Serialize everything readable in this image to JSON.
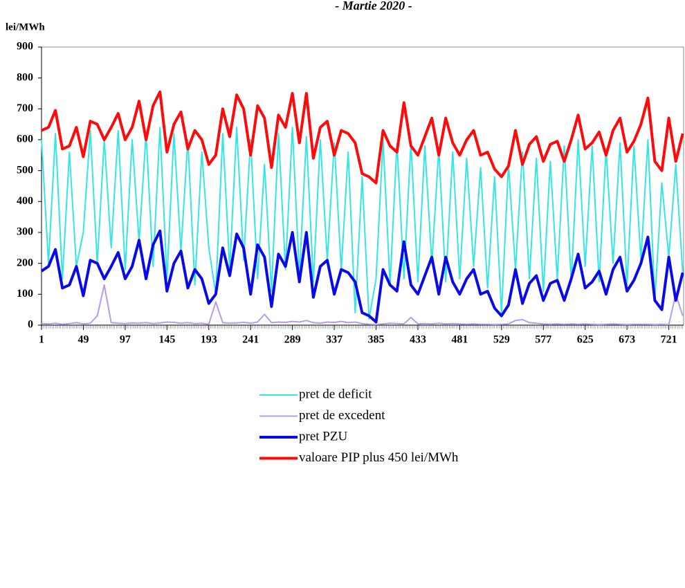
{
  "chart_data": {
    "type": "line",
    "title": "- Martie 2020 -",
    "y_label": "lei/MWh",
    "x": [
      1,
      9,
      17,
      25,
      33,
      41,
      49,
      57,
      65,
      73,
      81,
      89,
      97,
      105,
      113,
      121,
      129,
      137,
      145,
      153,
      161,
      169,
      177,
      185,
      193,
      201,
      209,
      217,
      225,
      233,
      241,
      249,
      257,
      265,
      273,
      281,
      289,
      297,
      305,
      313,
      321,
      329,
      337,
      345,
      353,
      361,
      369,
      377,
      385,
      393,
      401,
      409,
      417,
      425,
      433,
      441,
      449,
      457,
      465,
      473,
      481,
      489,
      497,
      505,
      513,
      521,
      529,
      537,
      545,
      553,
      561,
      569,
      577,
      585,
      593,
      601,
      609,
      617,
      625,
      633,
      641,
      649,
      657,
      665,
      673,
      681,
      689,
      697,
      705,
      713,
      721,
      729,
      737
    ],
    "xlim": [
      1,
      738
    ],
    "xticks": [
      1,
      49,
      97,
      145,
      193,
      241,
      289,
      337,
      385,
      433,
      481,
      529,
      577,
      625,
      673,
      721
    ],
    "ylim": [
      0,
      900
    ],
    "yticks": [
      0,
      100,
      200,
      300,
      400,
      500,
      600,
      700,
      800,
      900
    ],
    "series": [
      {
        "name": "pret de deficit",
        "color": "#33e6e6",
        "width": 2,
        "values": [
          600,
          200,
          620,
          150,
          560,
          190,
          300,
          630,
          200,
          600,
          250,
          630,
          180,
          600,
          270,
          620,
          190,
          640,
          150,
          620,
          240,
          600,
          130,
          560,
          250,
          100,
          620,
          180,
          640,
          210,
          600,
          150,
          520,
          110,
          620,
          180,
          640,
          160,
          610,
          140,
          600,
          210,
          590,
          180,
          560,
          40,
          480,
          20,
          150,
          600,
          130,
          590,
          150,
          590,
          140,
          580,
          200,
          570,
          140,
          560,
          150,
          540,
          190,
          510,
          120,
          480,
          40,
          520,
          180,
          560,
          150,
          540,
          110,
          530,
          150,
          580,
          140,
          600,
          190,
          580,
          140,
          570,
          200,
          590,
          130,
          580,
          210,
          600,
          80,
          460,
          220,
          520,
          170
        ]
      },
      {
        "name": "pret de excedent",
        "color": "#b89be8",
        "width": 2,
        "values": [
          5,
          4,
          6,
          3,
          5,
          8,
          4,
          6,
          30,
          130,
          8,
          6,
          5,
          7,
          6,
          8,
          5,
          7,
          10,
          9,
          6,
          8,
          5,
          6,
          3,
          75,
          8,
          6,
          7,
          9,
          6,
          10,
          35,
          8,
          10,
          9,
          12,
          10,
          15,
          8,
          6,
          10,
          9,
          12,
          8,
          10,
          5,
          3,
          2,
          4,
          6,
          5,
          4,
          25,
          4,
          5,
          4,
          6,
          4,
          5,
          4,
          3,
          4,
          3,
          3,
          2,
          3,
          4,
          15,
          18,
          8,
          6,
          4,
          3,
          4,
          3,
          4,
          3,
          4,
          3,
          2,
          3,
          4,
          3,
          2,
          3,
          3,
          3,
          2,
          3,
          2,
          100,
          30
        ]
      },
      {
        "name": "pret PZU",
        "color": "#0a0ae6",
        "width": 4,
        "values": [
          175,
          190,
          245,
          120,
          130,
          190,
          95,
          210,
          200,
          150,
          190,
          235,
          150,
          190,
          275,
          150,
          260,
          305,
          110,
          200,
          240,
          120,
          180,
          150,
          70,
          100,
          250,
          160,
          295,
          250,
          100,
          260,
          220,
          60,
          230,
          190,
          300,
          140,
          300,
          90,
          190,
          210,
          100,
          180,
          170,
          140,
          40,
          30,
          10,
          180,
          130,
          110,
          270,
          130,
          100,
          160,
          220,
          100,
          220,
          140,
          100,
          150,
          180,
          100,
          110,
          55,
          30,
          65,
          180,
          70,
          135,
          160,
          80,
          135,
          145,
          80,
          150,
          230,
          120,
          140,
          175,
          100,
          180,
          220,
          110,
          145,
          200,
          285,
          80,
          50,
          220,
          80,
          170
        ]
      },
      {
        "name": "valoare PIP plus 450 lei/MWh",
        "color": "#ff0a0a",
        "width": 4,
        "values": [
          630,
          640,
          695,
          570,
          580,
          640,
          545,
          660,
          650,
          600,
          640,
          685,
          600,
          640,
          725,
          600,
          710,
          755,
          560,
          650,
          690,
          570,
          630,
          600,
          520,
          550,
          700,
          610,
          745,
          700,
          550,
          710,
          670,
          510,
          680,
          640,
          750,
          590,
          750,
          540,
          640,
          660,
          550,
          630,
          620,
          590,
          490,
          480,
          460,
          630,
          580,
          560,
          720,
          580,
          550,
          610,
          670,
          550,
          670,
          590,
          550,
          600,
          630,
          550,
          560,
          505,
          480,
          515,
          630,
          520,
          585,
          610,
          530,
          585,
          595,
          530,
          600,
          680,
          570,
          590,
          625,
          550,
          630,
          670,
          560,
          595,
          650,
          735,
          530,
          500,
          670,
          530,
          620
        ]
      }
    ]
  }
}
